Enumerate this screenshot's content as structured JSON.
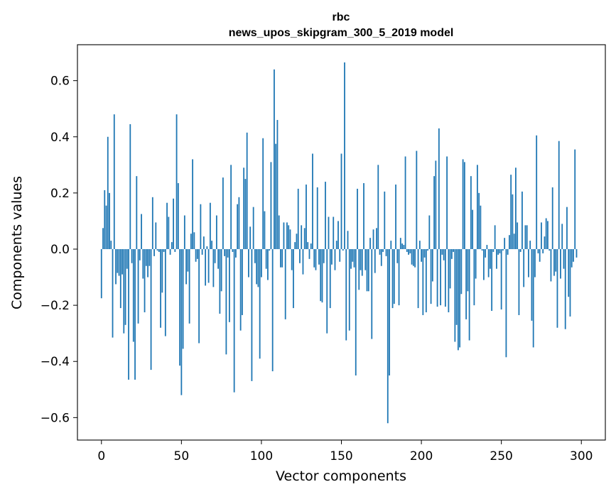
{
  "chart_data": {
    "type": "bar",
    "title_lines": [
      "rbc",
      "news_upos_skipgram_300_5_2019 model"
    ],
    "xlabel": "Vector components",
    "ylabel": "Components values",
    "xlim": [
      -15,
      315
    ],
    "ylim": [
      -0.68,
      0.728
    ],
    "xticks": [
      0,
      50,
      100,
      150,
      200,
      250,
      300
    ],
    "xtick_labels": [
      "0",
      "50",
      "100",
      "150",
      "200",
      "250",
      "300"
    ],
    "yticks": [
      -0.6,
      -0.4,
      -0.2,
      0.0,
      0.2,
      0.4,
      0.6
    ],
    "ytick_labels": [
      "−0.6",
      "−0.4",
      "−0.2",
      "0.0",
      "0.2",
      "0.4",
      "0.6"
    ],
    "grid": false,
    "bar_color": "#1f77b4",
    "values": [
      -0.175,
      0.075,
      0.21,
      0.155,
      0.4,
      0.2,
      0.03,
      -0.315,
      0.48,
      -0.125,
      -0.085,
      -0.095,
      -0.21,
      -0.09,
      -0.3,
      -0.27,
      -0.07,
      -0.465,
      0.445,
      -0.05,
      -0.33,
      -0.465,
      0.26,
      -0.265,
      -0.04,
      0.125,
      -0.105,
      -0.225,
      -0.06,
      -0.1,
      -0.06,
      -0.43,
      0.185,
      -0.025,
      0.095,
      -0.005,
      -0.01,
      -0.28,
      -0.155,
      -0.01,
      -0.31,
      0.165,
      0.115,
      -0.02,
      0.025,
      0.18,
      -0.01,
      0.48,
      0.235,
      -0.415,
      -0.52,
      -0.355,
      0.12,
      -0.125,
      -0.08,
      -0.265,
      0.055,
      0.32,
      0.06,
      -0.045,
      -0.035,
      -0.335,
      0.16,
      -0.02,
      0.045,
      -0.13,
      0.01,
      -0.12,
      0.165,
      0.03,
      -0.135,
      -0.05,
      0.12,
      -0.07,
      -0.23,
      -0.15,
      0.255,
      -0.025,
      -0.375,
      -0.03,
      -0.26,
      0.3,
      -0.01,
      -0.51,
      -0.03,
      0.16,
      0.185,
      -0.29,
      -0.235,
      0.29,
      0.25,
      0.415,
      -0.1,
      0.08,
      -0.47,
      0.15,
      -0.05,
      -0.125,
      -0.135,
      -0.39,
      -0.1,
      0.395,
      0.135,
      -0.07,
      -0.11,
      -0.005,
      0.31,
      -0.435,
      0.64,
      0.375,
      0.46,
      0.12,
      -0.065,
      -0.065,
      0.095,
      -0.25,
      0.095,
      0.085,
      0.07,
      -0.075,
      -0.21,
      0.025,
      0.055,
      0.215,
      -0.05,
      0.085,
      -0.09,
      0.075,
      0.23,
      0.025,
      -0.035,
      0.02,
      0.34,
      -0.065,
      -0.075,
      0.22,
      -0.055,
      -0.185,
      -0.19,
      -0.05,
      0.24,
      -0.3,
      0.115,
      -0.21,
      -0.055,
      0.115,
      -0.075,
      0.03,
      0.1,
      -0.045,
      0.34,
      -0.005,
      0.665,
      -0.325,
      0.065,
      -0.29,
      -0.07,
      -0.045,
      -0.065,
      -0.45,
      0.215,
      -0.145,
      -0.075,
      -0.095,
      0.235,
      -0.075,
      -0.15,
      -0.15,
      0.04,
      -0.32,
      0.07,
      -0.085,
      0.075,
      0.3,
      -0.02,
      -0.06,
      -0.01,
      0.205,
      -0.025,
      -0.62,
      -0.45,
      0.03,
      -0.21,
      -0.195,
      0.23,
      -0.05,
      -0.2,
      0.04,
      0.02,
      0.015,
      0.33,
      -0.01,
      -0.02,
      -0.015,
      -0.055,
      -0.06,
      -0.065,
      0.35,
      -0.21,
      0.03,
      -0.045,
      -0.235,
      -0.03,
      -0.225,
      -0.005,
      0.12,
      -0.195,
      -0.115,
      0.26,
      0.315,
      -0.205,
      0.43,
      -0.2,
      -0.02,
      -0.04,
      -0.205,
      0.33,
      -0.225,
      -0.14,
      -0.035,
      -0.01,
      -0.33,
      -0.27,
      -0.36,
      -0.35,
      -0.16,
      0.32,
      0.31,
      -0.25,
      -0.15,
      -0.325,
      0.26,
      0.14,
      -0.2,
      -0.105,
      0.3,
      0.2,
      0.155,
      -0.005,
      -0.11,
      -0.03,
      0.015,
      -0.1,
      -0.07,
      -0.22,
      -0.01,
      0.085,
      -0.07,
      -0.02,
      -0.015,
      -0.215,
      -0.005,
      0.04,
      -0.385,
      -0.02,
      0.05,
      0.265,
      0.195,
      0.055,
      0.29,
      0.095,
      -0.235,
      -0.01,
      0.205,
      -0.135,
      0.085,
      0.085,
      -0.1,
      0.03,
      -0.255,
      -0.35,
      -0.1,
      0.405,
      -0.015,
      -0.045,
      0.095,
      -0.015,
      0.045,
      0.11,
      0.1,
      -0.005,
      -0.115,
      0.22,
      -0.095,
      -0.08,
      -0.28,
      0.385,
      -0.105,
      0.09,
      -0.07,
      -0.285,
      0.15,
      -0.17,
      -0.24,
      -0.065,
      -0.045,
      0.355,
      -0.03
    ]
  }
}
